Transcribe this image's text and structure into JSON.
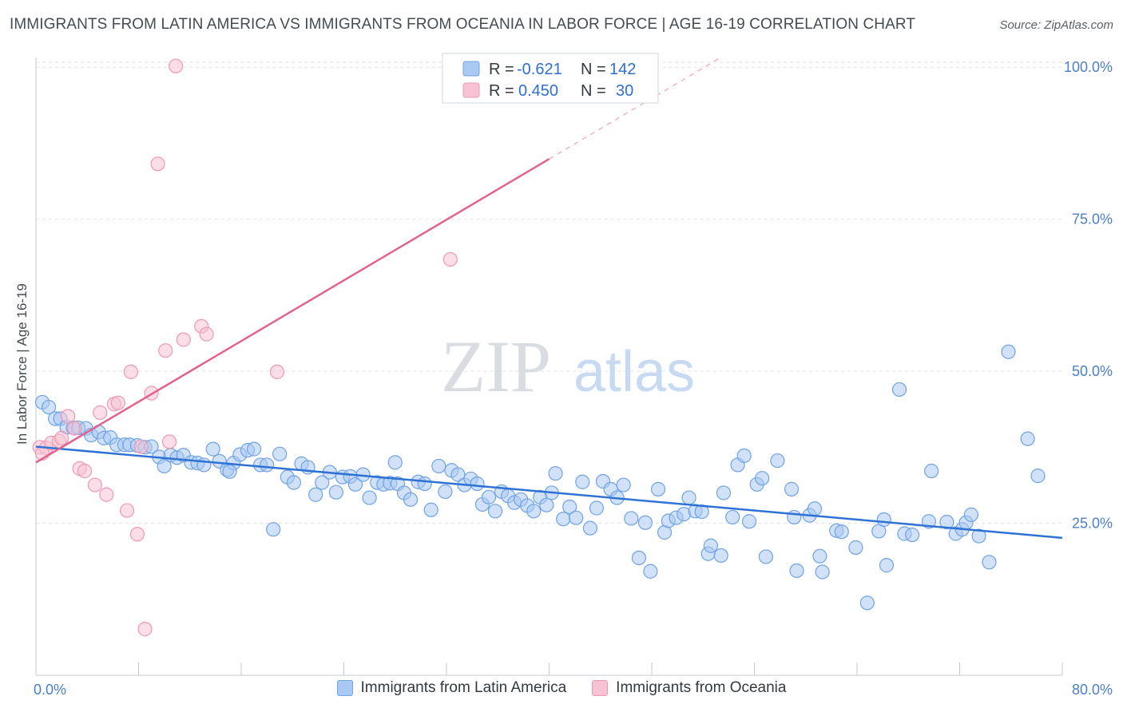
{
  "header": {
    "title": "IMMIGRANTS FROM LATIN AMERICA VS IMMIGRANTS FROM OCEANIA IN LABOR FORCE | AGE 16-19 CORRELATION CHART",
    "source": "Source: ZipAtlas.com"
  },
  "watermark": {
    "zip": "ZIP",
    "atlas": "atlas"
  },
  "colors": {
    "blue_fill": "#a9c9f2",
    "blue_stroke": "#6fa3e6",
    "blue_line": "#2f72d6",
    "pink_fill": "#f7c3d4",
    "pink_stroke": "#ee98b5",
    "pink_line": "#e2628f",
    "tick_text": "#4a7fc9",
    "grid": "#dfe3e8"
  },
  "stats": [
    {
      "r_label": "R =",
      "r_value": "-0.621",
      "n_label": "N =",
      "n_value": "142"
    },
    {
      "r_label": "R =",
      "r_value": "0.450",
      "n_label": "N =",
      "n_value": "30"
    }
  ],
  "legend": {
    "latin": "Immigrants from Latin America",
    "oceania": "Immigrants from Oceania"
  },
  "chart_data": {
    "type": "scatter",
    "title": "IMMIGRANTS FROM LATIN AMERICA VS IMMIGRANTS FROM OCEANIA IN LABOR FORCE | AGE 16-19 CORRELATION CHART",
    "xlabel": "",
    "ylabel": "In Labor Force | Age 16-19",
    "xlim": [
      0,
      80
    ],
    "ylim": [
      0,
      101.6
    ],
    "x_tick_labels": [
      "0.0%",
      "80.0%"
    ],
    "y_ticks": [
      25,
      50,
      75,
      100
    ],
    "y_tick_labels": [
      "25.0%",
      "50.0%",
      "75.0%",
      "100.0%"
    ],
    "grid": true,
    "legend_position": "bottom",
    "series": [
      {
        "name": "Immigrants from Latin America",
        "r": -0.621,
        "n": 142,
        "trend": {
          "x0": 0,
          "y0": 37.6,
          "x1": 80,
          "y1": 22.6
        },
        "points": [
          [
            0.5,
            44.9
          ],
          [
            1.0,
            44.1
          ],
          [
            1.5,
            42.2
          ],
          [
            1.9,
            42.2
          ],
          [
            2.4,
            40.8
          ],
          [
            2.9,
            40.7
          ],
          [
            3.3,
            40.7
          ],
          [
            3.9,
            40.6
          ],
          [
            4.3,
            39.5
          ],
          [
            4.9,
            40.0
          ],
          [
            5.3,
            39.0
          ],
          [
            5.8,
            39.1
          ],
          [
            6.3,
            37.9
          ],
          [
            6.9,
            37.9
          ],
          [
            7.3,
            37.9
          ],
          [
            7.9,
            37.8
          ],
          [
            8.5,
            37.5
          ],
          [
            9.0,
            37.6
          ],
          [
            9.6,
            35.9
          ],
          [
            10.0,
            34.4
          ],
          [
            10.5,
            36.2
          ],
          [
            11.0,
            35.8
          ],
          [
            11.5,
            36.2
          ],
          [
            12.1,
            35.0
          ],
          [
            12.6,
            34.9
          ],
          [
            13.1,
            34.6
          ],
          [
            13.8,
            37.2
          ],
          [
            14.3,
            35.2
          ],
          [
            14.9,
            33.8
          ],
          [
            15.4,
            34.9
          ],
          [
            15.9,
            36.3
          ],
          [
            16.5,
            37.0
          ],
          [
            17.0,
            37.2
          ],
          [
            17.5,
            34.6
          ],
          [
            18.0,
            34.6
          ],
          [
            18.5,
            24.0
          ],
          [
            19.0,
            36.4
          ],
          [
            19.6,
            32.6
          ],
          [
            20.1,
            31.7
          ],
          [
            20.7,
            34.8
          ],
          [
            21.2,
            34.2
          ],
          [
            21.8,
            29.7
          ],
          [
            22.3,
            31.7
          ],
          [
            22.9,
            33.4
          ],
          [
            23.4,
            30.1
          ],
          [
            23.9,
            32.6
          ],
          [
            24.5,
            32.7
          ],
          [
            24.9,
            31.4
          ],
          [
            25.5,
            33.0
          ],
          [
            26.0,
            29.2
          ],
          [
            26.6,
            31.7
          ],
          [
            27.1,
            31.4
          ],
          [
            27.6,
            31.6
          ],
          [
            28.2,
            31.5
          ],
          [
            28.7,
            30.0
          ],
          [
            29.2,
            28.9
          ],
          [
            29.8,
            31.8
          ],
          [
            30.3,
            31.5
          ],
          [
            30.8,
            27.2
          ],
          [
            31.4,
            34.4
          ],
          [
            31.9,
            30.2
          ],
          [
            32.4,
            33.7
          ],
          [
            32.9,
            33.0
          ],
          [
            33.4,
            31.3
          ],
          [
            33.9,
            32.3
          ],
          [
            34.4,
            31.5
          ],
          [
            34.8,
            28.1
          ],
          [
            35.3,
            29.3
          ],
          [
            35.8,
            27.0
          ],
          [
            36.3,
            30.2
          ],
          [
            36.8,
            29.5
          ],
          [
            37.3,
            28.4
          ],
          [
            37.8,
            28.9
          ],
          [
            38.3,
            27.9
          ],
          [
            38.8,
            27.0
          ],
          [
            39.3,
            29.3
          ],
          [
            39.8,
            28.0
          ],
          [
            40.2,
            30.0
          ],
          [
            40.5,
            33.2
          ],
          [
            41.1,
            25.7
          ],
          [
            41.6,
            27.7
          ],
          [
            42.1,
            25.9
          ],
          [
            42.6,
            31.8
          ],
          [
            43.2,
            24.2
          ],
          [
            43.7,
            27.5
          ],
          [
            44.2,
            31.9
          ],
          [
            44.8,
            30.6
          ],
          [
            45.3,
            29.2
          ],
          [
            45.8,
            31.3
          ],
          [
            46.4,
            25.8
          ],
          [
            47.0,
            19.3
          ],
          [
            47.5,
            25.1
          ],
          [
            47.9,
            17.1
          ],
          [
            48.5,
            30.6
          ],
          [
            49.0,
            23.5
          ],
          [
            49.3,
            25.4
          ],
          [
            49.9,
            25.9
          ],
          [
            50.5,
            26.5
          ],
          [
            50.9,
            29.2
          ],
          [
            51.4,
            27.0
          ],
          [
            51.9,
            26.9
          ],
          [
            52.4,
            20.0
          ],
          [
            52.6,
            21.3
          ],
          [
            53.4,
            19.7
          ],
          [
            53.6,
            30.0
          ],
          [
            54.3,
            26.0
          ],
          [
            54.7,
            34.6
          ],
          [
            55.2,
            36.1
          ],
          [
            55.6,
            25.3
          ],
          [
            56.2,
            31.4
          ],
          [
            56.6,
            32.4
          ],
          [
            56.9,
            19.5
          ],
          [
            57.8,
            35.3
          ],
          [
            58.9,
            30.6
          ],
          [
            59.1,
            26.0
          ],
          [
            59.3,
            17.2
          ],
          [
            60.3,
            26.3
          ],
          [
            60.7,
            27.4
          ],
          [
            61.1,
            19.6
          ],
          [
            61.3,
            17.0
          ],
          [
            62.4,
            23.8
          ],
          [
            62.8,
            23.6
          ],
          [
            63.9,
            21.0
          ],
          [
            65.7,
            23.7
          ],
          [
            66.1,
            25.6
          ],
          [
            66.3,
            18.1
          ],
          [
            67.3,
            47.0
          ],
          [
            67.7,
            23.3
          ],
          [
            68.3,
            23.1
          ],
          [
            69.6,
            25.3
          ],
          [
            69.8,
            33.6
          ],
          [
            71.0,
            25.2
          ],
          [
            71.7,
            23.3
          ],
          [
            72.2,
            24.0
          ],
          [
            72.5,
            25.1
          ],
          [
            72.9,
            26.4
          ],
          [
            73.5,
            22.9
          ],
          [
            75.8,
            53.2
          ],
          [
            77.3,
            38.9
          ],
          [
            78.1,
            32.8
          ],
          [
            74.3,
            18.6
          ],
          [
            64.8,
            11.9
          ],
          [
            28.0,
            35.0
          ],
          [
            15.1,
            33.5
          ]
        ]
      },
      {
        "name": "Immigrants from Oceania",
        "r": 0.45,
        "n": 30,
        "trend": {
          "x0": 0,
          "y0": 35.0,
          "x1": 40,
          "y1": 84.9,
          "dashed_to_x": 80
        },
        "points": [
          [
            0.3,
            37.5
          ],
          [
            0.8,
            37.4
          ],
          [
            1.2,
            38.2
          ],
          [
            1.8,
            38.5
          ],
          [
            2.5,
            42.6
          ],
          [
            3.0,
            40.6
          ],
          [
            3.4,
            34.0
          ],
          [
            3.8,
            33.6
          ],
          [
            4.6,
            31.3
          ],
          [
            5.0,
            43.2
          ],
          [
            5.5,
            29.7
          ],
          [
            6.1,
            44.6
          ],
          [
            6.4,
            44.8
          ],
          [
            7.1,
            27.1
          ],
          [
            7.4,
            49.9
          ],
          [
            7.9,
            23.2
          ],
          [
            8.2,
            37.6
          ],
          [
            8.5,
            7.6
          ],
          [
            9.0,
            46.4
          ],
          [
            9.5,
            84.1
          ],
          [
            10.1,
            53.4
          ],
          [
            10.4,
            38.4
          ],
          [
            10.9,
            100.2
          ],
          [
            11.5,
            55.2
          ],
          [
            12.9,
            57.4
          ],
          [
            13.3,
            56.1
          ],
          [
            18.8,
            49.9
          ],
          [
            32.3,
            68.4
          ],
          [
            2.0,
            39.0
          ],
          [
            0.5,
            36.5
          ]
        ]
      }
    ]
  }
}
